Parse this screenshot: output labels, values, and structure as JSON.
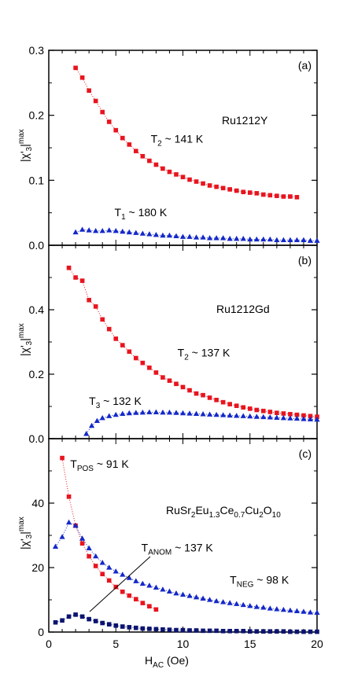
{
  "chart_data": [
    {
      "type": "scatter",
      "panel_label": "(a)",
      "sample_label": "Ru1212Y",
      "ylabel": "|χ'3|max",
      "ylim": [
        0,
        0.3
      ],
      "yticks": [
        "0.0",
        "0.1",
        "0.2",
        "0.3"
      ],
      "xlim": [
        0,
        20
      ],
      "grid": false,
      "series": [
        {
          "color": "#e8141e",
          "marker": "square",
          "x": [
            2.0,
            2.5,
            3.0,
            3.5,
            4.0,
            4.5,
            5.0,
            5.5,
            6.0,
            6.5,
            7.0,
            7.5,
            8.0,
            8.5,
            9.0,
            9.5,
            10.0,
            10.5,
            11.0,
            11.5,
            12.0,
            12.5,
            13.0,
            13.5,
            14.0,
            14.5,
            15.0,
            15.5,
            16.0,
            16.5,
            17.0,
            17.5,
            18.0,
            18.5
          ],
          "y": [
            0.273,
            0.258,
            0.238,
            0.222,
            0.205,
            0.19,
            0.177,
            0.165,
            0.155,
            0.145,
            0.137,
            0.13,
            0.124,
            0.118,
            0.113,
            0.109,
            0.105,
            0.101,
            0.098,
            0.095,
            0.092,
            0.09,
            0.088,
            0.086,
            0.084,
            0.082,
            0.081,
            0.08,
            0.078,
            0.077,
            0.076,
            0.075,
            0.075,
            0.074
          ]
        },
        {
          "color": "#1428c8",
          "marker": "triangle",
          "x": [
            2.0,
            2.5,
            3.0,
            3.5,
            4.0,
            4.5,
            5.0,
            5.5,
            6.0,
            6.5,
            7.0,
            7.5,
            8.0,
            8.5,
            9.0,
            9.5,
            10.0,
            10.5,
            11.0,
            11.5,
            12.0,
            12.5,
            13.0,
            13.5,
            14.0,
            14.5,
            15.0,
            15.5,
            16.0,
            16.5,
            17.0,
            17.5,
            18.0,
            18.5,
            19.0,
            19.5,
            20.0
          ],
          "y": [
            0.02,
            0.024,
            0.023,
            0.022,
            0.022,
            0.023,
            0.022,
            0.021,
            0.02,
            0.019,
            0.018,
            0.017,
            0.016,
            0.015,
            0.015,
            0.014,
            0.013,
            0.013,
            0.012,
            0.012,
            0.011,
            0.011,
            0.011,
            0.01,
            0.01,
            0.01,
            0.009,
            0.009,
            0.009,
            0.009,
            0.008,
            0.008,
            0.008,
            0.008,
            0.008,
            0.007,
            0.007
          ]
        }
      ],
      "annotations": [
        {
          "main": "T",
          "sub": "2",
          "rest": " ~ 141 K",
          "x": 7.6,
          "y": 0.158
        },
        {
          "main": "T",
          "sub": "1",
          "rest": " ~ 180 K",
          "x": 4.9,
          "y": 0.045
        }
      ]
    },
    {
      "type": "scatter",
      "panel_label": "(b)",
      "sample_label": "Ru1212Gd",
      "ylabel": "|χ'3|max",
      "ylim": [
        0,
        0.6
      ],
      "yticks": [
        "0.0",
        "0.2",
        "0.4"
      ],
      "xlim": [
        0,
        20
      ],
      "grid": false,
      "series": [
        {
          "color": "#e8141e",
          "marker": "square",
          "x": [
            1.5,
            2.0,
            2.5,
            3.0,
            3.5,
            4.0,
            4.5,
            5.0,
            5.5,
            6.0,
            6.5,
            7.0,
            7.5,
            8.0,
            8.5,
            9.0,
            9.5,
            10.0,
            10.5,
            11.0,
            11.5,
            12.0,
            12.5,
            13.0,
            13.5,
            14.0,
            14.5,
            15.0,
            15.5,
            16.0,
            16.5,
            17.0,
            17.5,
            18.0,
            18.5,
            19.0,
            19.5,
            20.0
          ],
          "y": [
            0.53,
            0.5,
            0.49,
            0.43,
            0.41,
            0.37,
            0.34,
            0.31,
            0.29,
            0.27,
            0.25,
            0.235,
            0.22,
            0.205,
            0.19,
            0.18,
            0.17,
            0.16,
            0.15,
            0.14,
            0.135,
            0.127,
            0.12,
            0.113,
            0.107,
            0.102,
            0.097,
            0.093,
            0.089,
            0.086,
            0.083,
            0.08,
            0.078,
            0.076,
            0.074,
            0.072,
            0.07,
            0.068
          ]
        },
        {
          "color": "#1428c8",
          "marker": "triangle",
          "x": [
            2.8,
            3.2,
            3.6,
            4.0,
            4.5,
            5.0,
            5.5,
            6.0,
            6.5,
            7.0,
            7.5,
            8.0,
            8.5,
            9.0,
            9.5,
            10.0,
            10.5,
            11.0,
            11.5,
            12.0,
            12.5,
            13.0,
            13.5,
            14.0,
            14.5,
            15.0,
            15.5,
            16.0,
            16.5,
            17.0,
            17.5,
            18.0,
            18.5,
            19.0,
            19.5,
            20.0
          ],
          "y": [
            0.015,
            0.04,
            0.055,
            0.064,
            0.07,
            0.074,
            0.077,
            0.079,
            0.08,
            0.081,
            0.082,
            0.082,
            0.081,
            0.081,
            0.08,
            0.079,
            0.078,
            0.077,
            0.076,
            0.075,
            0.074,
            0.073,
            0.072,
            0.071,
            0.07,
            0.069,
            0.068,
            0.067,
            0.066,
            0.065,
            0.064,
            0.063,
            0.062,
            0.061,
            0.06,
            0.059
          ]
        }
      ],
      "annotations": [
        {
          "main": "T",
          "sub": "2",
          "rest": " ~ 137 K",
          "x": 9.6,
          "y": 0.255
        },
        {
          "main": "T",
          "sub": "3",
          "rest": " ~ 132 K",
          "x": 3.0,
          "y": 0.105
        }
      ]
    },
    {
      "type": "scatter",
      "panel_label": "(c)",
      "sample_label": "RuSr2Eu1.3Ce0.7Cu2O10",
      "ylabel": "|χ'3|max",
      "xlabel": "HAC (Oe)",
      "ylim": [
        0,
        60
      ],
      "yticks": [
        "0",
        "20",
        "40"
      ],
      "xlim": [
        0,
        20
      ],
      "xticks": [
        "0",
        "5",
        "10",
        "15",
        "20"
      ],
      "grid": false,
      "series": [
        {
          "color": "#e8141e",
          "marker": "square",
          "x": [
            1.0,
            1.5,
            2.0,
            2.5,
            3.0,
            3.5,
            4.0,
            4.5,
            5.0,
            5.5,
            6.0,
            6.5,
            7.0,
            7.5,
            8.0
          ],
          "y": [
            54.0,
            42.0,
            33.0,
            27.5,
            23.5,
            20.5,
            18.0,
            16.0,
            14.0,
            12.5,
            11.3,
            10.2,
            9.0,
            8.0,
            7.0
          ]
        },
        {
          "color": "#1428c8",
          "marker": "triangle",
          "x": [
            0.5,
            1.0,
            1.5,
            2.0,
            2.5,
            3.0,
            3.5,
            4.0,
            4.5,
            5.0,
            5.5,
            6.0,
            6.5,
            7.0,
            7.5,
            8.0,
            8.5,
            9.0,
            9.5,
            10.0,
            10.5,
            11.0,
            11.5,
            12.0,
            12.5,
            13.0,
            13.5,
            14.0,
            14.5,
            15.0,
            15.5,
            16.0,
            16.5,
            17.0,
            17.5,
            18.0,
            18.5,
            19.0,
            19.5,
            20.0
          ],
          "y": [
            26.5,
            29.5,
            34.0,
            33.0,
            29.0,
            26.0,
            23.5,
            21.5,
            20.0,
            18.8,
            17.8,
            16.8,
            15.8,
            15.0,
            14.4,
            13.8,
            13.2,
            12.6,
            12.0,
            11.6,
            11.2,
            10.8,
            10.4,
            10.0,
            9.6,
            9.3,
            9.0,
            8.7,
            8.4,
            8.1,
            7.8,
            7.6,
            7.3,
            7.1,
            6.9,
            6.7,
            6.5,
            6.3,
            6.1,
            6.0
          ]
        },
        {
          "color": "#0c1470",
          "marker": "square",
          "x": [
            0.5,
            1.0,
            1.5,
            2.0,
            2.5,
            3.0,
            3.5,
            4.0,
            4.5,
            5.0,
            5.5,
            6.0,
            6.5,
            7.0,
            7.5,
            8.0,
            8.5,
            9.0,
            9.5,
            10.0,
            10.5,
            11.0,
            11.5,
            12.0,
            12.5,
            13.0,
            13.5,
            14.0,
            14.5,
            15.0,
            15.5,
            16.0,
            16.5,
            17.0,
            17.5,
            18.0,
            18.5,
            19.0,
            19.5,
            20.0
          ],
          "y": [
            3.0,
            3.6,
            4.8,
            5.4,
            4.8,
            4.0,
            3.4,
            2.8,
            2.4,
            2.0,
            1.7,
            1.5,
            1.3,
            1.1,
            1.0,
            0.9,
            0.8,
            0.7,
            0.6,
            0.6,
            0.5,
            0.5,
            0.4,
            0.4,
            0.4,
            0.3,
            0.3,
            0.3,
            0.3,
            0.2,
            0.2,
            0.2,
            0.2,
            0.2,
            0.2,
            0.1,
            0.1,
            0.1,
            0.1,
            0.1
          ]
        }
      ],
      "annotations": [
        {
          "main": "T",
          "sub": "POS",
          "rest": " ~ 91 K",
          "x": 1.6,
          "y": 51
        },
        {
          "main": "T",
          "sub": "ANOM",
          "rest": " ~ 137 K",
          "x": 6.9,
          "y": 25
        },
        {
          "main": "T",
          "sub": "NEG",
          "rest": " ~ 98 K",
          "x": 13.5,
          "y": 15
        }
      ]
    }
  ]
}
